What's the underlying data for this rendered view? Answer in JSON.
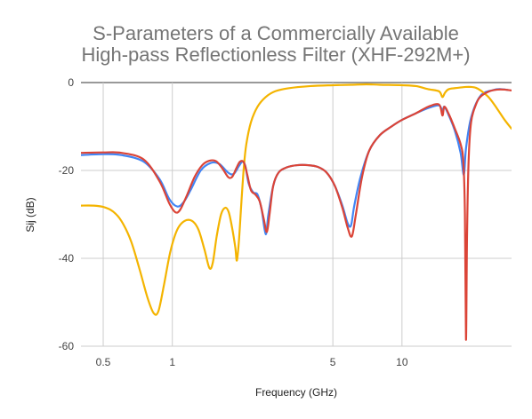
{
  "chart_data": {
    "type": "line",
    "title": [
      "S-Parameters of a Commercially Available",
      "High-pass Reflectionless Filter (XHF-292M+)"
    ],
    "xlabel": "Frequency (GHz)",
    "ylabel": "Sij (dB)",
    "x_scale": "log",
    "xlim": [
      0.4,
      30
    ],
    "ylim": [
      -60,
      0
    ],
    "x_ticks": [
      0.5,
      1,
      5,
      10
    ],
    "x_tick_labels": [
      "0.5",
      "1",
      "5",
      "10"
    ],
    "y_ticks": [
      0,
      -20,
      -40,
      -60
    ],
    "y_tick_labels": [
      "0",
      "-20",
      "-40",
      "-60"
    ],
    "grid": true,
    "series": [
      {
        "color": "#4285f4",
        "points": [
          [
            0.4,
            -16.5
          ],
          [
            0.5,
            -16.3
          ],
          [
            0.6,
            -16.5
          ],
          [
            0.75,
            -18
          ],
          [
            0.88,
            -22
          ],
          [
            0.97,
            -26.5
          ],
          [
            1.05,
            -28.2
          ],
          [
            1.12,
            -27.2
          ],
          [
            1.2,
            -24.5
          ],
          [
            1.33,
            -20
          ],
          [
            1.47,
            -18.3
          ],
          [
            1.6,
            -18.5
          ],
          [
            1.75,
            -20.5
          ],
          [
            1.85,
            -20.8
          ],
          [
            1.95,
            -19
          ],
          [
            2.02,
            -18
          ],
          [
            2.08,
            -19
          ],
          [
            2.15,
            -23
          ],
          [
            2.25,
            -25
          ],
          [
            2.35,
            -25.5
          ],
          [
            2.45,
            -29
          ],
          [
            2.55,
            -34.5
          ],
          [
            2.62,
            -30
          ],
          [
            2.75,
            -23.5
          ],
          [
            2.9,
            -20.5
          ],
          [
            3.15,
            -19.3
          ],
          [
            3.5,
            -18.8
          ],
          [
            3.9,
            -18.8
          ],
          [
            4.3,
            -19.2
          ],
          [
            4.7,
            -20.5
          ],
          [
            5.1,
            -23.5
          ],
          [
            5.5,
            -28
          ],
          [
            5.8,
            -32
          ],
          [
            6.0,
            -32.5
          ],
          [
            6.2,
            -28
          ],
          [
            6.6,
            -21.5
          ],
          [
            7.2,
            -15.5
          ],
          [
            8.0,
            -12
          ],
          [
            9,
            -10
          ],
          [
            10,
            -8.5
          ],
          [
            11.5,
            -7
          ],
          [
            13,
            -5.8
          ],
          [
            14.5,
            -5.2
          ],
          [
            15,
            -6.5
          ],
          [
            15.3,
            -5.5
          ],
          [
            16,
            -7.5
          ],
          [
            17,
            -11
          ],
          [
            18,
            -16
          ],
          [
            18.6,
            -21
          ],
          [
            19.0,
            -15
          ],
          [
            20,
            -8
          ],
          [
            22,
            -3
          ],
          [
            25,
            -1.7
          ],
          [
            27,
            -1.5
          ],
          [
            29,
            -1.7
          ]
        ]
      },
      {
        "color": "#f4b400",
        "points": [
          [
            0.4,
            -28
          ],
          [
            0.45,
            -28
          ],
          [
            0.5,
            -28.3
          ],
          [
            0.55,
            -29.3
          ],
          [
            0.6,
            -31.5
          ],
          [
            0.66,
            -36
          ],
          [
            0.72,
            -42.5
          ],
          [
            0.78,
            -49
          ],
          [
            0.83,
            -52.5
          ],
          [
            0.87,
            -52
          ],
          [
            0.92,
            -46
          ],
          [
            0.98,
            -38.5
          ],
          [
            1.05,
            -33.5
          ],
          [
            1.13,
            -31.5
          ],
          [
            1.22,
            -31.5
          ],
          [
            1.3,
            -33.5
          ],
          [
            1.38,
            -38
          ],
          [
            1.45,
            -42.2
          ],
          [
            1.5,
            -41
          ],
          [
            1.56,
            -35
          ],
          [
            1.63,
            -30
          ],
          [
            1.7,
            -28.5
          ],
          [
            1.76,
            -29.5
          ],
          [
            1.82,
            -33
          ],
          [
            1.88,
            -37.5
          ],
          [
            1.91,
            -40.5
          ],
          [
            1.95,
            -36
          ],
          [
            2.0,
            -27
          ],
          [
            2.05,
            -19
          ],
          [
            2.1,
            -14
          ],
          [
            2.2,
            -9
          ],
          [
            2.35,
            -5.5
          ],
          [
            2.55,
            -3.3
          ],
          [
            2.8,
            -2
          ],
          [
            3.2,
            -1.3
          ],
          [
            4,
            -0.8
          ],
          [
            5,
            -0.6
          ],
          [
            6,
            -0.5
          ],
          [
            7,
            -0.4
          ],
          [
            8,
            -0.5
          ],
          [
            10,
            -0.6
          ],
          [
            11.5,
            -0.8
          ],
          [
            13,
            -1.5
          ],
          [
            14.5,
            -2
          ],
          [
            15,
            -3.3
          ],
          [
            15.4,
            -2.3
          ],
          [
            16,
            -1.5
          ],
          [
            17.5,
            -1.2
          ],
          [
            19,
            -1
          ],
          [
            20,
            -1
          ],
          [
            21,
            -1.2
          ],
          [
            22,
            -1.8
          ],
          [
            24,
            -3.5
          ],
          [
            26,
            -6
          ],
          [
            28,
            -8.5
          ],
          [
            30,
            -10.5
          ]
        ]
      },
      {
        "color": "#db4437",
        "points": [
          [
            0.4,
            -16
          ],
          [
            0.5,
            -15.9
          ],
          [
            0.6,
            -16
          ],
          [
            0.75,
            -17.5
          ],
          [
            0.88,
            -22.5
          ],
          [
            0.97,
            -27.5
          ],
          [
            1.03,
            -29.5
          ],
          [
            1.08,
            -29
          ],
          [
            1.15,
            -26
          ],
          [
            1.25,
            -21.5
          ],
          [
            1.35,
            -18.8
          ],
          [
            1.45,
            -17.8
          ],
          [
            1.55,
            -17.9
          ],
          [
            1.65,
            -19.5
          ],
          [
            1.75,
            -21.5
          ],
          [
            1.82,
            -21.5
          ],
          [
            1.9,
            -19.5
          ],
          [
            1.97,
            -18
          ],
          [
            2.05,
            -18.2
          ],
          [
            2.12,
            -21
          ],
          [
            2.2,
            -24.5
          ],
          [
            2.3,
            -25.5
          ],
          [
            2.4,
            -27
          ],
          [
            2.5,
            -31
          ],
          [
            2.58,
            -34
          ],
          [
            2.65,
            -30
          ],
          [
            2.75,
            -23.5
          ],
          [
            2.9,
            -20.5
          ],
          [
            3.15,
            -19.3
          ],
          [
            3.5,
            -18.8
          ],
          [
            3.9,
            -18.8
          ],
          [
            4.3,
            -19.2
          ],
          [
            4.7,
            -20.5
          ],
          [
            5.1,
            -23.5
          ],
          [
            5.5,
            -28.5
          ],
          [
            5.8,
            -33
          ],
          [
            6.05,
            -35
          ],
          [
            6.3,
            -30
          ],
          [
            6.7,
            -21.5
          ],
          [
            7.2,
            -15.5
          ],
          [
            8.0,
            -12
          ],
          [
            9,
            -10
          ],
          [
            10,
            -8.5
          ],
          [
            11.5,
            -7
          ],
          [
            13,
            -5.5
          ],
          [
            14.5,
            -5
          ],
          [
            15,
            -7.5
          ],
          [
            15.3,
            -5.5
          ],
          [
            16,
            -7.2
          ],
          [
            17,
            -10.5
          ],
          [
            18,
            -14
          ],
          [
            18.5,
            -18
          ],
          [
            18.8,
            -30
          ],
          [
            19.0,
            -58.5
          ],
          [
            19.2,
            -35
          ],
          [
            19.5,
            -18
          ],
          [
            20,
            -9
          ],
          [
            21,
            -5
          ],
          [
            22,
            -3.2
          ],
          [
            24,
            -2
          ],
          [
            26,
            -1.6
          ],
          [
            28,
            -1.6
          ],
          [
            30,
            -1.8
          ]
        ]
      }
    ]
  }
}
